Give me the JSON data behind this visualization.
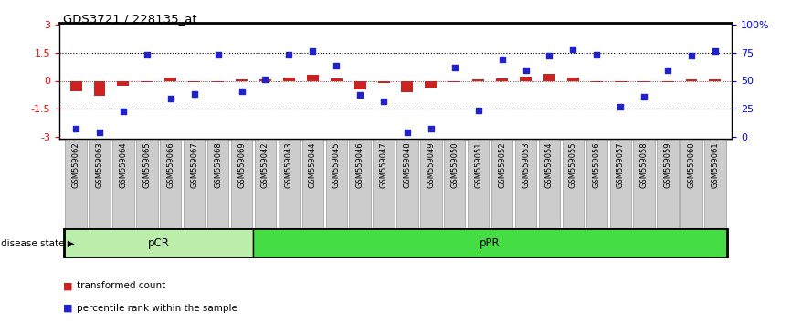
{
  "title": "GDS3721 / 228135_at",
  "samples": [
    "GSM559062",
    "GSM559063",
    "GSM559064",
    "GSM559065",
    "GSM559066",
    "GSM559067",
    "GSM559068",
    "GSM559069",
    "GSM559042",
    "GSM559043",
    "GSM559044",
    "GSM559045",
    "GSM559046",
    "GSM559047",
    "GSM559048",
    "GSM559049",
    "GSM559050",
    "GSM559051",
    "GSM559052",
    "GSM559053",
    "GSM559054",
    "GSM559055",
    "GSM559056",
    "GSM559057",
    "GSM559058",
    "GSM559059",
    "GSM559060",
    "GSM559061"
  ],
  "red_values": [
    -0.55,
    -0.8,
    -0.25,
    -0.05,
    0.15,
    -0.08,
    -0.05,
    0.05,
    0.08,
    0.15,
    0.3,
    0.1,
    -0.45,
    -0.1,
    -0.6,
    -0.35,
    -0.05,
    0.05,
    0.12,
    0.2,
    0.35,
    0.15,
    -0.05,
    -0.05,
    -0.05,
    -0.05,
    0.05,
    0.08
  ],
  "blue_values": [
    -2.55,
    -2.75,
    -1.65,
    1.38,
    -0.95,
    -0.7,
    1.38,
    -0.58,
    0.05,
    1.38,
    1.58,
    0.8,
    -0.75,
    -1.1,
    -2.75,
    -2.55,
    0.7,
    -1.6,
    1.15,
    0.55,
    1.35,
    1.7,
    1.38,
    -1.4,
    -0.85,
    0.55,
    1.35,
    1.6
  ],
  "pCR_count": 8,
  "pPR_count": 20,
  "ylim": [
    -3.1,
    3.1
  ],
  "yticks_left": [
    -3,
    -1.5,
    0,
    1.5,
    3
  ],
  "bar_color": "#cc2222",
  "dot_color": "#2222cc",
  "pCR_color": "#bbeeaa",
  "pPR_color": "#44dd44",
  "legend_bar_label": "transformed count",
  "legend_dot_label": "percentile rank within the sample",
  "disease_state_label": "disease state",
  "pCR_label": "pCR",
  "pPR_label": "pPR"
}
